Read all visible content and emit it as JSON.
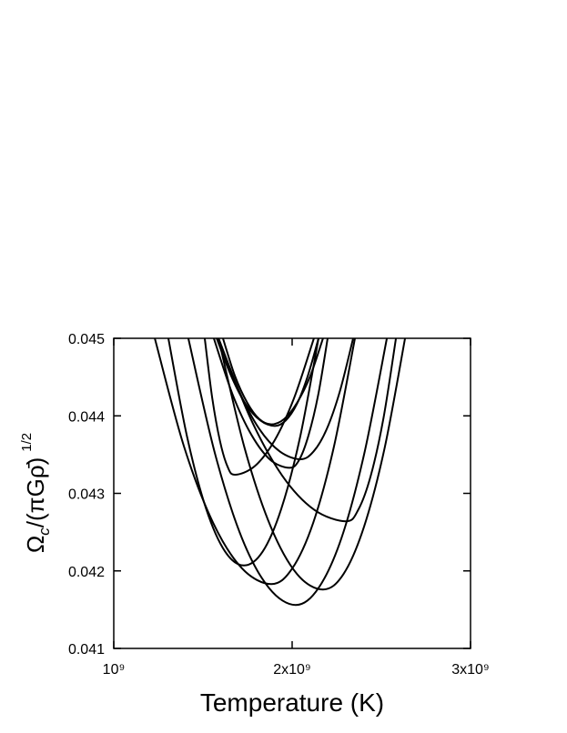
{
  "chart_data": {
    "type": "line",
    "xlabel": "Temperature (K)",
    "ylabel": {
      "symbol": "Ω",
      "sub": "c",
      "rest": "/(πGρ̄)",
      "sup": "1/2"
    },
    "xlim": [
      1000000000,
      3000000000
    ],
    "ylim": [
      0.041,
      0.045
    ],
    "xticks": [
      {
        "value": 1000000000,
        "label": "10⁹"
      },
      {
        "value": 2000000000,
        "label": "2x10⁹"
      },
      {
        "value": 3000000000,
        "label": "3x10⁹"
      }
    ],
    "yticks": [
      0.041,
      0.042,
      0.043,
      0.044,
      0.045
    ],
    "series": [
      {
        "color": "#000000",
        "x": [
          1418000000,
          1569000000,
          1719000000,
          1870000000,
          2020000000,
          2148000000,
          2276000000,
          2403000000,
          2531000000
        ],
        "values": [
          0.045,
          0.0435,
          0.04242,
          0.04178,
          0.04156,
          0.04178,
          0.04242,
          0.0435,
          0.045
        ]
      },
      {
        "color": "#000000",
        "x": [
          1587000000,
          1734000000,
          1880000000,
          2027000000,
          2173000000,
          2288000000,
          2403000000,
          2518000000,
          2633000000
        ],
        "values": [
          0.045,
          0.04358,
          0.04257,
          0.04196,
          0.04176,
          0.04196,
          0.04257,
          0.04358,
          0.045
        ]
      },
      {
        "color": "#000000",
        "x": [
          1230000000,
          1393000000,
          1557000000,
          1720000000,
          1883000000,
          2000000000,
          2118000000,
          2235000000,
          2352000000
        ],
        "values": [
          0.045,
          0.04361,
          0.04262,
          0.04203,
          0.04183,
          0.04203,
          0.04262,
          0.04361,
          0.045
        ]
      },
      {
        "color": "#000000",
        "x": [
          1306000000,
          1412000000,
          1518000000,
          1624000000,
          1730000000,
          1835000000,
          1939000000,
          2044000000,
          2148000000
        ],
        "values": [
          0.045,
          0.04372,
          0.0428,
          0.04225,
          0.04207,
          0.04225,
          0.0428,
          0.04372,
          0.045
        ]
      },
      {
        "color": "#000000",
        "x": [
          1587000000,
          1766000000,
          1944000000,
          2123000000,
          2301000000,
          2371000000,
          2441000000,
          2512000000,
          2582000000
        ],
        "values": [
          0.045,
          0.04397,
          0.04323,
          0.04279,
          0.04264,
          0.04279,
          0.04323,
          0.04397,
          0.045
        ]
      },
      {
        "color": "#000000",
        "x": [
          1510000000,
          1552000000,
          1595000000,
          1637000000,
          1679000000,
          1790000000,
          1901000000,
          2011000000,
          2122000000
        ],
        "values": [
          0.045,
          0.04423,
          0.04368,
          0.04335,
          0.04324,
          0.04335,
          0.04368,
          0.04423,
          0.045
        ]
      },
      {
        "color": "#000000",
        "x": [
          1561000000,
          1667000000,
          1773000000,
          1879000000,
          1985000000,
          2039000000,
          2092000000,
          2146000000,
          2199000000
        ],
        "values": [
          0.045,
          0.04427,
          0.04375,
          0.04343,
          0.04333,
          0.04343,
          0.04375,
          0.04427,
          0.045
        ]
      },
      {
        "color": "#000000",
        "x": [
          1587000000,
          1702000000,
          1816000000,
          1931000000,
          2046000000,
          2120000000,
          2194000000,
          2268000000,
          2342000000
        ],
        "values": [
          0.045,
          0.04432,
          0.04383,
          0.04354,
          0.04344,
          0.04354,
          0.04383,
          0.04432,
          0.045
        ]
      },
      {
        "color": "#000000",
        "x": [
          1612000000,
          1680000000,
          1748000000,
          1815000000,
          1883000000,
          1956000000,
          2028000000,
          2101000000,
          2173000000
        ],
        "values": [
          0.045,
          0.04451,
          0.04417,
          0.04396,
          0.04389,
          0.04396,
          0.04417,
          0.04451,
          0.045
        ]
      },
      {
        "color": "#000000",
        "x": [
          1577000000,
          1659000000,
          1740000000,
          1822000000,
          1903000000,
          1964000000,
          2026000000,
          2087000000,
          2148000000
        ],
        "values": [
          0.045,
          0.04451,
          0.04415,
          0.04394,
          0.04387,
          0.04394,
          0.04415,
          0.04451,
          0.045
        ]
      }
    ]
  }
}
